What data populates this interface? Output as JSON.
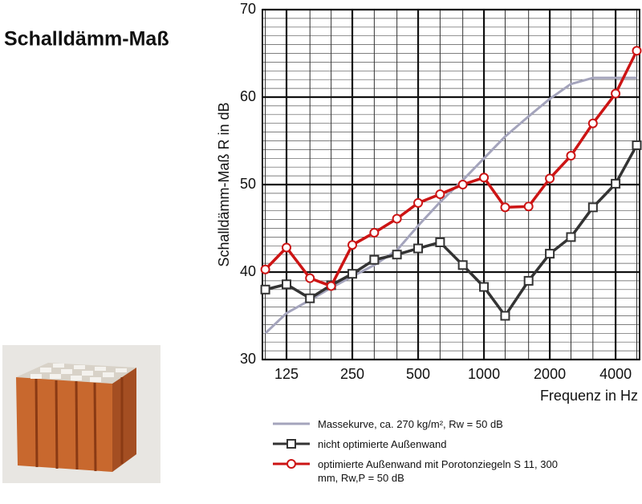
{
  "chart_data": {
    "type": "line",
    "title": "Schalldämm-Maß",
    "y_label": "Schalldämm-Maß R in dB",
    "x_label": "Frequenz in Hz",
    "x": [
      100,
      125,
      160,
      200,
      250,
      315,
      400,
      500,
      630,
      800,
      1000,
      1250,
      1600,
      2000,
      2500,
      3150,
      4000,
      5000
    ],
    "xscale": "log",
    "xlim": [
      97,
      5150
    ],
    "xticks": [
      125,
      250,
      500,
      1000,
      2000,
      4000
    ],
    "ylim": [
      30,
      70
    ],
    "yticks": [
      30,
      40,
      50,
      60,
      70
    ],
    "grid": true,
    "minor_grid": true,
    "series": [
      {
        "name": "Massekurve, ca. 270 kg/m², Rw = 50 dB",
        "color": "#a4a4bc",
        "marker": "none",
        "values": [
          33,
          35.3,
          36.8,
          38.2,
          39.5,
          40.8,
          42.5,
          45.3,
          48,
          50.5,
          53,
          55.5,
          57.8,
          59.8,
          61.5,
          62.2,
          62.2,
          62.2
        ]
      },
      {
        "name": "nicht optimierte Außenwand",
        "color": "#333333",
        "marker": "square",
        "values": [
          38,
          38.6,
          37,
          38.5,
          39.8,
          41.4,
          42,
          42.7,
          43.4,
          40.8,
          38.3,
          35,
          39,
          42.1,
          44,
          47.4,
          50.1,
          54.5
        ]
      },
      {
        "name": "optimierte Außenwand mit Porotonziegeln S 11, 300 mm, Rw,P = 50 dB",
        "color": "#cc1414",
        "marker": "circle",
        "values": [
          40.3,
          42.8,
          39.3,
          38.4,
          43.1,
          44.5,
          46.1,
          47.9,
          48.9,
          50,
          50.8,
          47.4,
          47.5,
          50.7,
          53.3,
          57,
          60.4,
          65.3
        ]
      }
    ]
  }
}
